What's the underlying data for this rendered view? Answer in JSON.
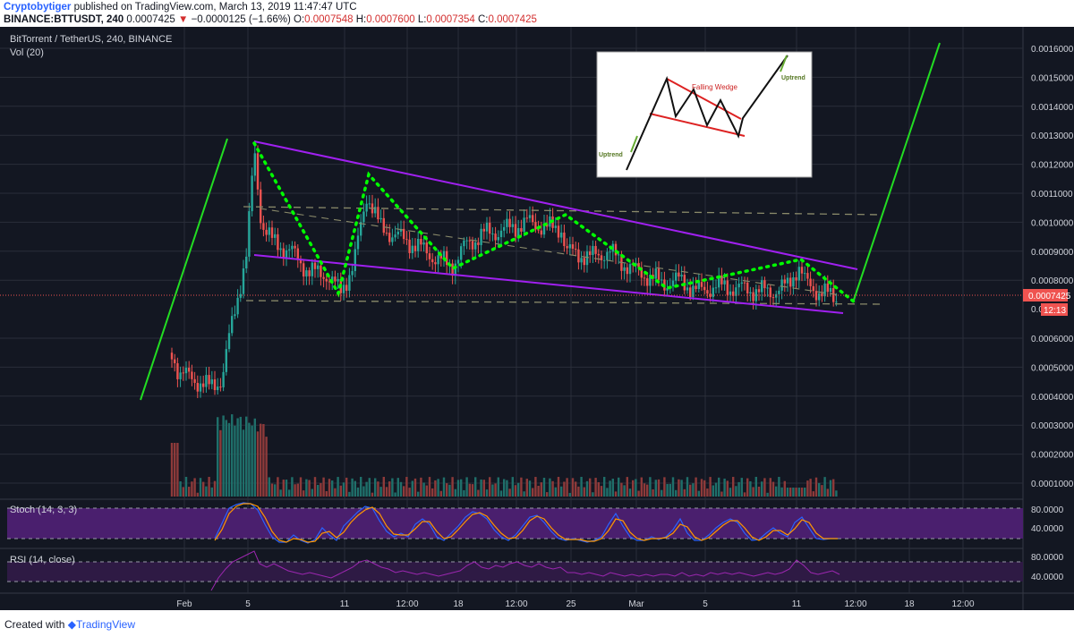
{
  "header": {
    "author": "Cryptobytiger",
    "published_text": " published on TradingView.com, March 13, 2019 11:47:47 UTC",
    "symbol": "BINANCE:BTTUSDT, 240",
    "last": "0.0007425",
    "arrow": "▼",
    "change": "−0.0000125 (−1.66%)",
    "o_label": "O:",
    "o_value": "0.0007548",
    "h_label": "H:",
    "h_value": "0.0007600",
    "l_label": "L:",
    "l_value": "0.0007354",
    "c_label": "C:",
    "c_value": "0.0007425"
  },
  "legend": {
    "title": "BitTorrent / TetherUS, 240, BINANCE",
    "vol": "Vol (20)"
  },
  "price_axis": {
    "ticks": [
      "0.0016000",
      "0.0015000",
      "0.0014000",
      "0.0013000",
      "0.0012000",
      "0.0011000",
      "0.0010000",
      "0.0009000",
      "0.0008000",
      "0.0006000",
      "0.0005000",
      "0.0004000",
      "0.0003000",
      "0.0002000",
      "0.0001000"
    ],
    "ticks_numeric": [
      0.0016,
      0.0015,
      0.0014,
      0.0013,
      0.0012,
      0.0011,
      0.001,
      0.0009,
      0.0008,
      0.0006,
      0.0005,
      0.0004,
      0.0003,
      0.0002,
      0.0001
    ],
    "current_price": "0.0007425",
    "partial_label": "0.00",
    "countdown": "12:13"
  },
  "stoch": {
    "title": "Stoch (14, 3, 3)",
    "ticks": [
      "80.0000",
      "40.0000"
    ]
  },
  "rsi": {
    "title": "RSI (14, close)",
    "ticks": [
      "80.0000",
      "40.0000"
    ]
  },
  "time_axis": [
    "Feb",
    "5",
    "11",
    "12:00",
    "18",
    "12:00",
    "25",
    "Mar",
    "5",
    "11",
    "12:00",
    "18",
    "12:00"
  ],
  "inset": {
    "title": "Falling Wedge",
    "left_label": "Uptrend",
    "right_label": "Uptrend"
  },
  "footer": {
    "created_with": "Created with",
    "brand": "TradingView"
  },
  "colors": {
    "background": "#131722",
    "grid": "#2a2e39",
    "up_candle": "#26a69a",
    "down_candle": "#ef5350",
    "wedge": "#a020f0",
    "trend": "#22dd22",
    "dots": "#00ff00",
    "dashed": "#8a8a6a",
    "stoch_fill": "#4a1f6e",
    "rsi_fill": "#2e1a44",
    "price_marker": "#ef5350",
    "inset_wedge": "#dd2222"
  }
}
